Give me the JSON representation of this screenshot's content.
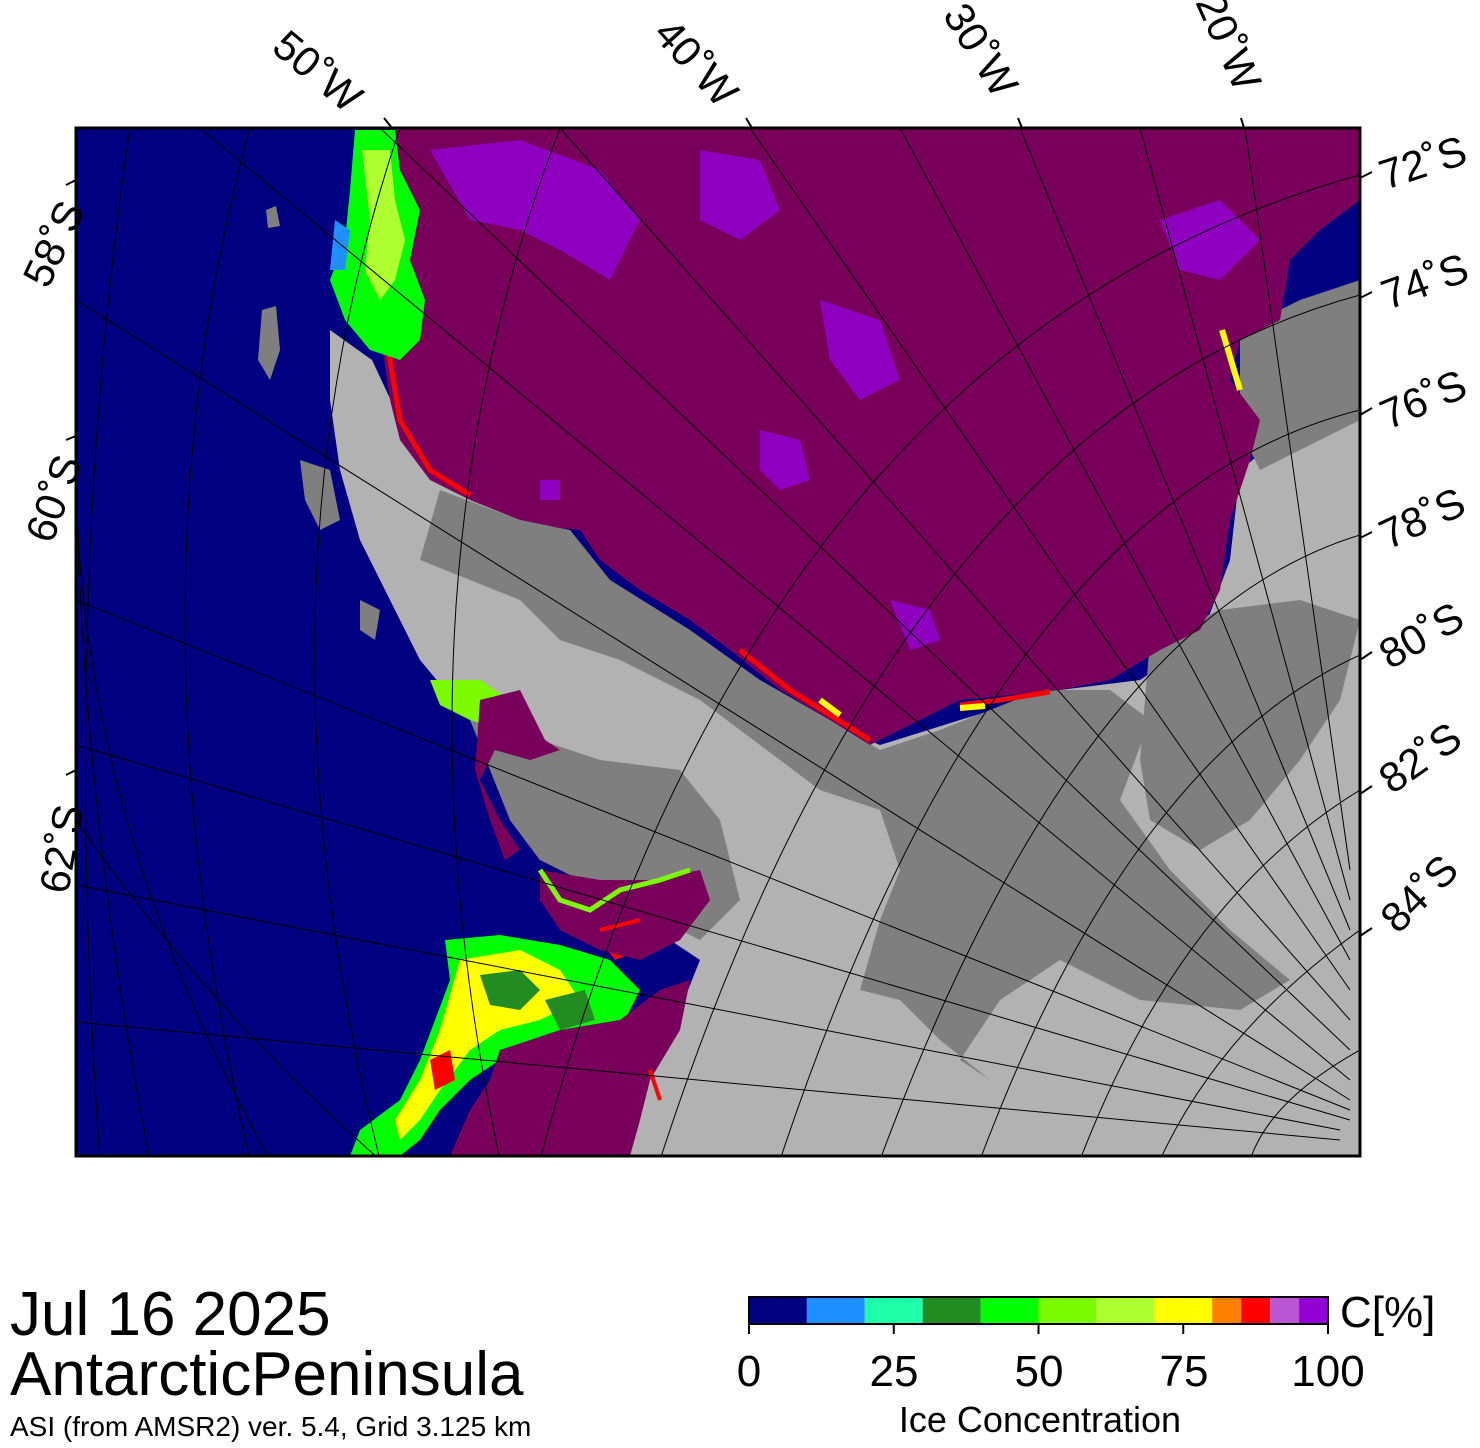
{
  "map": {
    "date": "Jul 16 2025",
    "region": "AntarcticPeninsula",
    "source": "ASI (from AMSR2) ver. 5.4,  Grid 3.125 km",
    "longitude_labels": [
      "50˚W",
      "40˚W",
      "30˚W",
      "20˚W"
    ],
    "latitude_labels_left": [
      "58˚S",
      "60˚S",
      "62˚S"
    ],
    "latitude_labels_right": [
      "72˚S",
      "74˚S",
      "76˚S",
      "78˚S",
      "80˚S",
      "82˚S",
      "84˚S"
    ],
    "surface_colors": {
      "open_water": "#000080",
      "land_ice_shelf": "#7f7f7f",
      "land_interior": "#b2b2b2",
      "high_concentration_ice": "#78005a"
    }
  },
  "colorbar": {
    "title": "Ice Concentration",
    "unit_label": "C[%]",
    "tick_labels": [
      "0",
      "25",
      "50",
      "75",
      "100"
    ],
    "range": [
      0,
      100
    ],
    "bins": [
      {
        "from": 0,
        "to": 10,
        "color": "#000080"
      },
      {
        "from": 10,
        "to": 20,
        "color": "#1e90ff"
      },
      {
        "from": 20,
        "to": 30,
        "color": "#1effaa"
      },
      {
        "from": 30,
        "to": 40,
        "color": "#228b22"
      },
      {
        "from": 40,
        "to": 50,
        "color": "#00ff00"
      },
      {
        "from": 50,
        "to": 60,
        "color": "#7cfc00"
      },
      {
        "from": 60,
        "to": 70,
        "color": "#adff2f"
      },
      {
        "from": 70,
        "to": 80,
        "color": "#ffff00"
      },
      {
        "from": 80,
        "to": 85,
        "color": "#ff7f00"
      },
      {
        "from": 85,
        "to": 90,
        "color": "#ff0000"
      },
      {
        "from": 90,
        "to": 95,
        "color": "#ba55d3"
      },
      {
        "from": 95,
        "to": 100,
        "color": "#9400d3"
      }
    ]
  }
}
